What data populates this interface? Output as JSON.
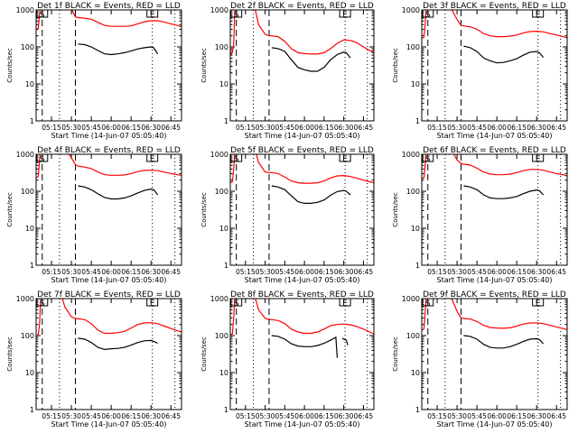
{
  "chart_data": {
    "type": "line",
    "layout": "3x3 grid",
    "shared": {
      "xlabel": "Start Time (14-Jun-07 05:05:40)",
      "ylabel": "Counts/sec",
      "yscale": "log",
      "ylim": [
        1,
        1000
      ],
      "yticks": [
        "1",
        "10",
        "100",
        "1000"
      ],
      "xlim_minutes": [
        303.4,
        413.0
      ],
      "xticks": [
        "05:15",
        "05:30",
        "05:45",
        "06:00",
        "06:15",
        "06:30",
        "06:45"
      ],
      "xtick_minutes": [
        315,
        330,
        345,
        360,
        375,
        390,
        405
      ],
      "dashed_lines_minutes": [
        308,
        333
      ],
      "dotted_lines_minutes": [
        321,
        391,
        408
      ],
      "markers": [
        {
          "label": "S",
          "minute": 308
        },
        {
          "label": "E",
          "minute": 391
        }
      ],
      "legend": "in title",
      "series_colors": {
        "Events": "#000000",
        "LLD": "#ff0000"
      }
    },
    "panels": [
      {
        "title": "Det 1f BLACK = Events, RED = LLD",
        "lld": {
          "x": [
            303.4,
            305,
            306,
            307,
            312,
            318,
            322,
            325,
            330,
            333,
            335,
            340,
            345,
            350,
            355,
            360,
            365,
            370,
            375,
            380,
            385,
            390,
            395,
            400,
            405,
            410,
            413
          ],
          "y": [
            300,
            320,
            800,
            1500,
            3000,
            3000,
            2500,
            1500,
            1050,
            650,
            620,
            600,
            560,
            460,
            380,
            360,
            360,
            360,
            370,
            420,
            480,
            510,
            510,
            470,
            420,
            380,
            350
          ]
        },
        "events": {
          "x": [
            335,
            340,
            345,
            350,
            355,
            360,
            365,
            370,
            375,
            380,
            385,
            390,
            392,
            395
          ],
          "y": [
            120,
            115,
            100,
            80,
            65,
            62,
            65,
            70,
            78,
            88,
            95,
            100,
            95,
            65
          ]
        }
      },
      {
        "title": "Det 2f BLACK = Events, RED = LLD",
        "lld": {
          "x": [
            303.4,
            305,
            306,
            307,
            312,
            318,
            322,
            325,
            330,
            333,
            335,
            340,
            345,
            350,
            355,
            360,
            365,
            370,
            375,
            380,
            385,
            390,
            395,
            400,
            405,
            410,
            413
          ],
          "y": [
            60,
            70,
            120,
            1500,
            3000,
            3000,
            1200,
            400,
            220,
            200,
            200,
            190,
            140,
            90,
            70,
            66,
            64,
            64,
            70,
            90,
            125,
            155,
            150,
            130,
            100,
            80,
            70
          ]
        },
        "events": {
          "x": [
            335,
            340,
            345,
            350,
            355,
            360,
            365,
            370,
            375,
            380,
            385,
            390,
            392,
            395
          ],
          "y": [
            95,
            90,
            75,
            45,
            28,
            24,
            22,
            22,
            28,
            45,
            62,
            72,
            70,
            50
          ]
        }
      },
      {
        "title": "Det 3f BLACK = Events, RED = LLD",
        "lld": {
          "x": [
            303.4,
            305,
            306,
            307,
            312,
            318,
            322,
            325,
            330,
            333,
            335,
            340,
            345,
            350,
            355,
            360,
            365,
            370,
            375,
            380,
            385,
            390,
            395,
            400,
            405,
            410,
            413
          ],
          "y": [
            170,
            180,
            400,
            1500,
            3000,
            3000,
            2500,
            1200,
            550,
            380,
            370,
            350,
            300,
            230,
            200,
            190,
            190,
            195,
            210,
            240,
            260,
            265,
            255,
            230,
            210,
            190,
            175
          ]
        },
        "events": {
          "x": [
            335,
            340,
            345,
            350,
            355,
            360,
            365,
            370,
            375,
            380,
            385,
            390,
            392,
            395
          ],
          "y": [
            105,
            95,
            75,
            50,
            42,
            37,
            38,
            42,
            48,
            60,
            72,
            75,
            70,
            52
          ]
        }
      },
      {
        "title": "Det 4f BLACK = Events, RED = LLD",
        "lld": {
          "x": [
            303.4,
            305,
            306,
            307,
            312,
            318,
            322,
            325,
            330,
            333,
            335,
            340,
            345,
            350,
            355,
            360,
            365,
            370,
            375,
            380,
            385,
            390,
            395,
            400,
            405,
            410,
            413
          ],
          "y": [
            230,
            250,
            700,
            1500,
            3000,
            3000,
            2500,
            1500,
            800,
            520,
            480,
            450,
            410,
            330,
            280,
            270,
            270,
            275,
            300,
            340,
            365,
            370,
            360,
            330,
            300,
            280,
            270
          ]
        },
        "events": {
          "x": [
            335,
            340,
            345,
            350,
            355,
            360,
            365,
            370,
            375,
            380,
            385,
            390,
            392,
            395
          ],
          "y": [
            140,
            130,
            110,
            85,
            68,
            62,
            62,
            66,
            75,
            90,
            105,
            115,
            110,
            80
          ]
        }
      },
      {
        "title": "Det 5f BLACK = Events, RED = LLD",
        "lld": {
          "x": [
            303.4,
            305,
            306,
            307,
            312,
            318,
            322,
            325,
            330,
            333,
            335,
            340,
            345,
            350,
            355,
            360,
            365,
            370,
            375,
            380,
            385,
            390,
            395,
            400,
            405,
            410,
            413
          ],
          "y": [
            170,
            180,
            400,
            1500,
            3000,
            3000,
            1500,
            600,
            330,
            320,
            320,
            300,
            240,
            190,
            170,
            165,
            165,
            170,
            190,
            230,
            260,
            265,
            250,
            225,
            200,
            180,
            170
          ]
        },
        "events": {
          "x": [
            335,
            340,
            345,
            350,
            355,
            360,
            365,
            370,
            375,
            380,
            385,
            390,
            392,
            395
          ],
          "y": [
            140,
            130,
            110,
            75,
            52,
            47,
            47,
            50,
            58,
            78,
            98,
            105,
            100,
            80
          ]
        }
      },
      {
        "title": "Det 6f BLACK = Events, RED = LLD",
        "lld": {
          "x": [
            303.4,
            305,
            306,
            307,
            312,
            318,
            322,
            325,
            330,
            333,
            335,
            340,
            345,
            350,
            355,
            360,
            365,
            370,
            375,
            380,
            385,
            390,
            395,
            400,
            405,
            410,
            413
          ],
          "y": [
            220,
            230,
            500,
            1500,
            3000,
            3000,
            2500,
            1500,
            700,
            560,
            540,
            510,
            420,
            330,
            290,
            280,
            280,
            290,
            320,
            360,
            390,
            390,
            370,
            330,
            300,
            280,
            260
          ]
        },
        "events": {
          "x": [
            335,
            340,
            345,
            350,
            355,
            360,
            365,
            370,
            375,
            380,
            385,
            390,
            392,
            395
          ],
          "y": [
            140,
            130,
            110,
            80,
            66,
            63,
            63,
            66,
            72,
            86,
            100,
            108,
            104,
            80
          ]
        }
      },
      {
        "title": "Det 7f BLACK = Events, RED = LLD",
        "lld": {
          "x": [
            303.4,
            305,
            306,
            307,
            312,
            318,
            322,
            325,
            330,
            333,
            335,
            340,
            345,
            350,
            355,
            360,
            365,
            370,
            375,
            380,
            385,
            390,
            395,
            400,
            405,
            410,
            413
          ],
          "y": [
            95,
            110,
            200,
            1500,
            3000,
            3000,
            1500,
            600,
            320,
            290,
            285,
            270,
            210,
            140,
            115,
            115,
            120,
            130,
            160,
            200,
            220,
            225,
            210,
            180,
            155,
            135,
            125
          ]
        },
        "events": {
          "x": [
            335,
            340,
            345,
            350,
            355,
            360,
            365,
            370,
            375,
            380,
            385,
            390,
            392,
            395
          ],
          "y": [
            85,
            80,
            65,
            48,
            42,
            44,
            45,
            48,
            55,
            65,
            72,
            74,
            70,
            62
          ]
        }
      },
      {
        "title": "Det 8f BLACK = Events, RED = LLD",
        "lld": {
          "x": [
            303.4,
            305,
            306,
            307,
            312,
            318,
            322,
            325,
            330,
            333,
            335,
            340,
            345,
            350,
            355,
            360,
            365,
            370,
            375,
            380,
            385,
            390,
            395,
            400,
            405,
            410,
            413
          ],
          "y": [
            105,
            110,
            300,
            1500,
            3000,
            3000,
            1200,
            500,
            290,
            270,
            270,
            255,
            210,
            150,
            125,
            115,
            115,
            125,
            150,
            185,
            200,
            205,
            195,
            175,
            150,
            125,
            110
          ]
        },
        "events": {
          "x": [
            335,
            340,
            345,
            350,
            355,
            360,
            365,
            370,
            375,
            380,
            384,
            385,
            386,
            389,
            390,
            392,
            393
          ],
          "y": [
            100,
            95,
            80,
            60,
            52,
            50,
            50,
            54,
            62,
            75,
            90,
            25,
            null,
            85,
            80,
            75,
            55
          ]
        }
      },
      {
        "title": "Det 9f BLACK = Events, RED = LLD",
        "lld": {
          "x": [
            303.4,
            305,
            306,
            307,
            312,
            318,
            322,
            325,
            330,
            333,
            335,
            340,
            345,
            350,
            355,
            360,
            365,
            370,
            375,
            380,
            385,
            390,
            395,
            400,
            405,
            410,
            413
          ],
          "y": [
            140,
            150,
            400,
            1500,
            3000,
            3000,
            2500,
            1200,
            450,
            300,
            290,
            280,
            240,
            190,
            165,
            160,
            158,
            162,
            180,
            205,
            220,
            220,
            210,
            190,
            170,
            155,
            145
          ]
        },
        "events": {
          "x": [
            335,
            340,
            345,
            350,
            355,
            360,
            365,
            370,
            375,
            380,
            385,
            390,
            392,
            395
          ],
          "y": [
            100,
            95,
            80,
            58,
            48,
            46,
            46,
            50,
            58,
            70,
            80,
            82,
            78,
            60
          ]
        }
      }
    ]
  }
}
